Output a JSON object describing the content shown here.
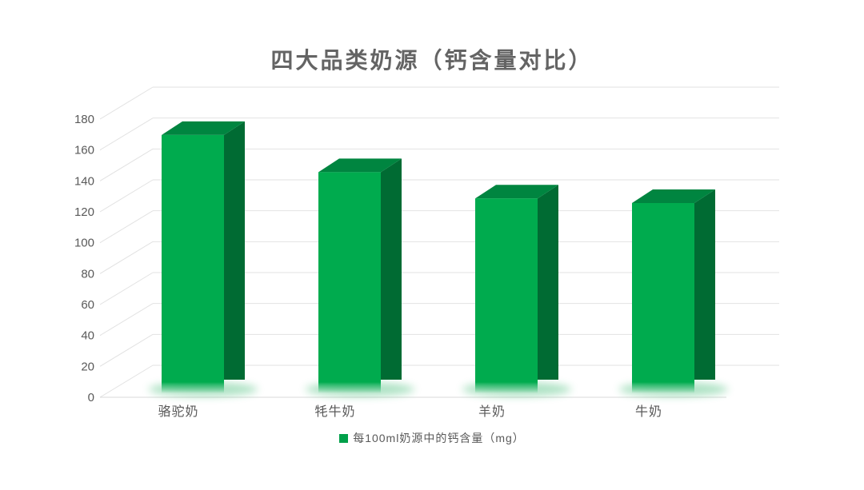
{
  "chart": {
    "title": "四大品类奶源（钙含量对比）",
    "legend": {
      "label": "每100ml奶源中的钙含量（mg）",
      "swatch_color": "#00A04A"
    }
  },
  "chart_data": {
    "type": "bar",
    "style": "3d-column",
    "title": "四大品类奶源（钙含量对比）",
    "categories": [
      "骆驼奶",
      "牦牛奶",
      "羊奶",
      "牛奶"
    ],
    "series": [
      {
        "name": "每100ml奶源中的钙含量（mg）",
        "values": [
          164,
          140,
          123,
          120
        ]
      }
    ],
    "xlabel": "",
    "ylabel": "",
    "ylim": [
      0,
      180
    ],
    "ytick_step": 20,
    "ytick_labels": [
      "0",
      "20",
      "40",
      "60",
      "80",
      "100",
      "120",
      "140",
      "160",
      "180"
    ],
    "grid": true,
    "legend_position": "bottom",
    "colors": {
      "bar_front": "#00AB4E",
      "bar_top": "#008540",
      "bar_side": "#006B33",
      "bar_glow": "#2FB567",
      "gridline": "#E2E2E2",
      "baseline": "#DADADA",
      "axis_text": "#595959",
      "title_text": "#646464"
    }
  }
}
